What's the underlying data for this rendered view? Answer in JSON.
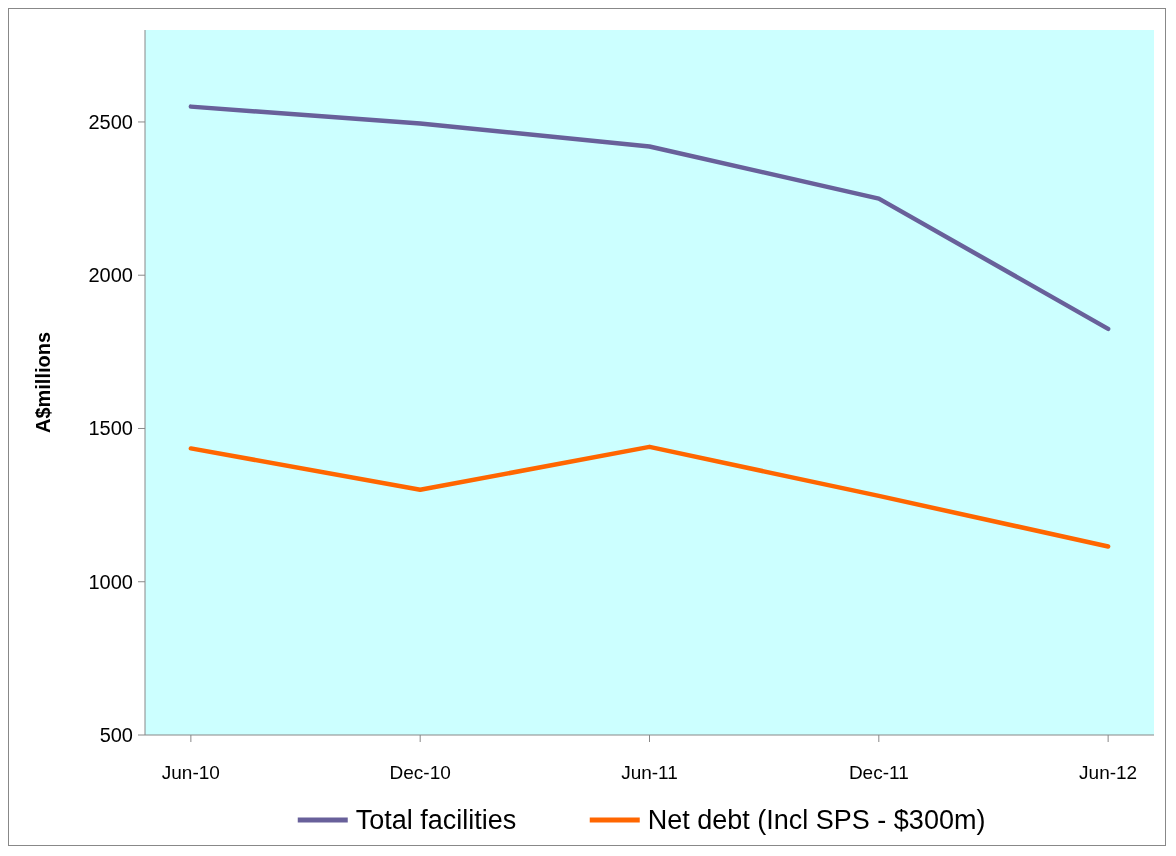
{
  "chart_data": {
    "type": "line",
    "ylabel": "A$millions",
    "categories": [
      "Jun-10",
      "Dec-10",
      "Jun-11",
      "Dec-11",
      "Jun-12"
    ],
    "series": [
      {
        "name": "Total facilities",
        "color": "#68609a",
        "values": [
          2550,
          2495,
          2420,
          2250,
          1825
        ]
      },
      {
        "name": "Net debt (Incl SPS - $300m)",
        "color": "#ff6600",
        "values": [
          1435,
          1300,
          1440,
          1280,
          1115
        ]
      }
    ],
    "ylim": [
      500,
      2800
    ],
    "yticks": [
      500,
      1000,
      1500,
      2000,
      2500
    ],
    "grid": false,
    "legend": "bottom",
    "marker": "none",
    "line_style": "solid"
  }
}
